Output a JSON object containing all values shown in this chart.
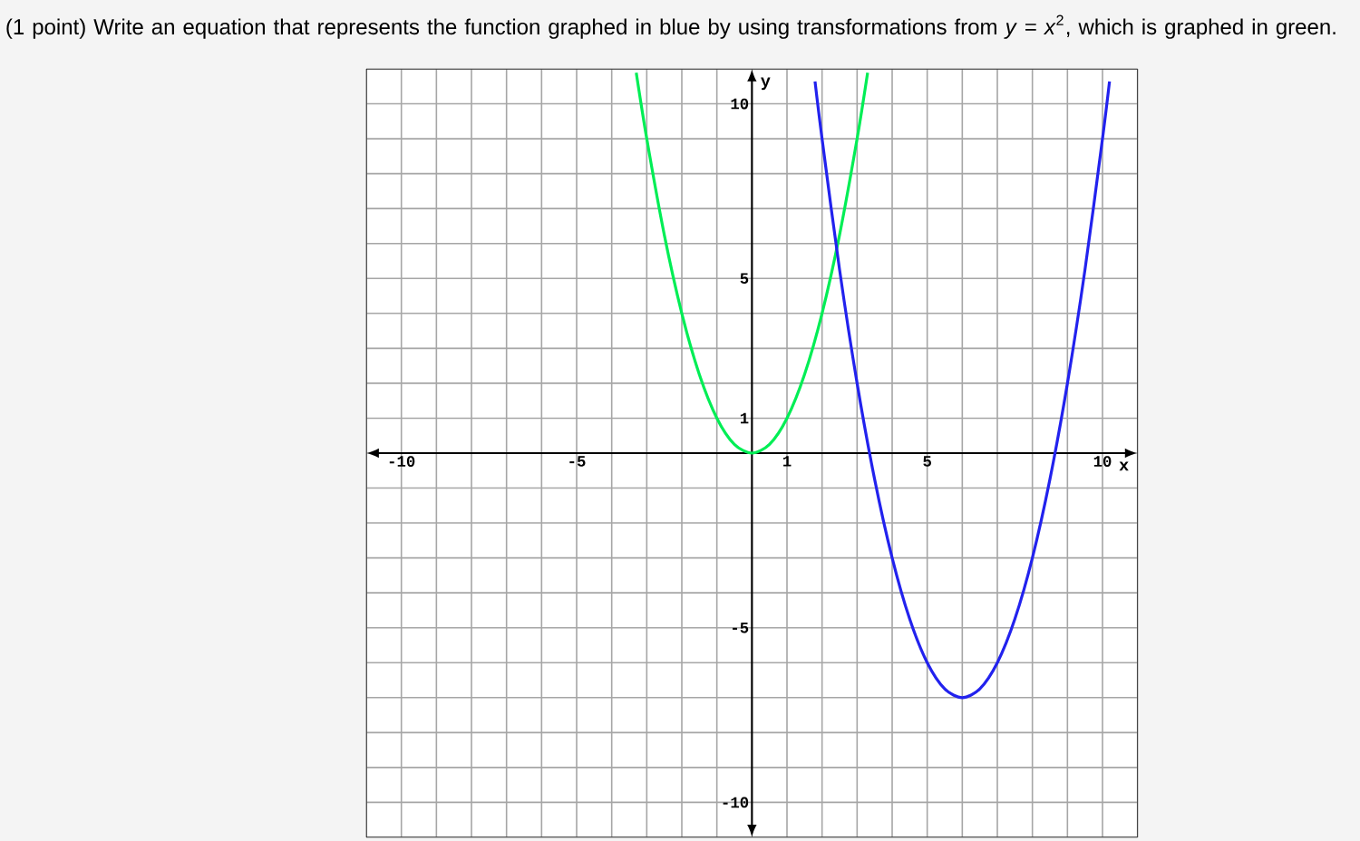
{
  "chart_data": {
    "type": "line",
    "title": "(1 point) Write an equation that represents the function graphed in blue by using transformations from *y* = *x*$^{2}$, which is graphed in green.",
    "xlabel": "x",
    "ylabel": "y",
    "xlim": [
      -11,
      11
    ],
    "ylim": [
      -11,
      11
    ],
    "xticks": [
      {
        "value": -11,
        "label": null
      },
      -10,
      {
        "value": -9,
        "label": null
      },
      {
        "value": -8,
        "label": null
      },
      {
        "value": -7,
        "label": null
      },
      {
        "value": -6,
        "label": null
      },
      -5,
      {
        "value": -4,
        "label": null
      },
      {
        "value": -3,
        "label": null
      },
      {
        "value": -2,
        "label": null
      },
      {
        "value": -1,
        "label": null
      },
      {
        "value": 0,
        "label": null
      },
      1,
      {
        "value": 2,
        "label": null
      },
      {
        "value": 3,
        "label": null
      },
      {
        "value": 4,
        "label": null
      },
      5,
      {
        "value": 6,
        "label": null
      },
      {
        "value": 7,
        "label": null
      },
      {
        "value": 8,
        "label": null
      },
      {
        "value": 9,
        "label": null
      },
      10,
      {
        "value": 11,
        "label": null
      }
    ],
    "yticks": [
      {
        "value": -11,
        "label": null
      },
      -10,
      {
        "value": -9,
        "label": null
      },
      {
        "value": -8,
        "label": null
      },
      {
        "value": -7,
        "label": null
      },
      {
        "value": -6,
        "label": null
      },
      -5,
      {
        "value": -4,
        "label": null
      },
      {
        "value": -3,
        "label": null
      },
      {
        "value": -2,
        "label": null
      },
      {
        "value": -1,
        "label": null
      },
      {
        "value": 0,
        "label": null
      },
      1,
      {
        "value": 2,
        "label": null
      },
      {
        "value": 3,
        "label": null
      },
      {
        "value": 4,
        "label": null
      },
      5,
      {
        "value": 6,
        "label": null
      },
      {
        "value": 7,
        "label": null
      },
      {
        "value": 8,
        "label": null
      },
      {
        "value": 9,
        "label": null
      },
      10,
      {
        "value": 11,
        "label": null
      }
    ],
    "grid": true,
    "marker": "none",
    "line_style": "solid",
    "series": [
      {
        "color": "#00ee55",
        "x": [
          -3.3,
          -3,
          -2.5,
          -2,
          -1.5,
          -1,
          -0.5,
          0,
          0.5,
          1,
          1.5,
          2,
          2.5,
          3,
          3.3
        ],
        "values": [
          10.89,
          9,
          6.25,
          4,
          2.25,
          1,
          0.25,
          0,
          0.25,
          1,
          2.25,
          4,
          6.25,
          9,
          10.89
        ]
      },
      {
        "color": "#2222ee",
        "x": [
          1.8,
          2,
          2.5,
          3,
          3.5,
          4,
          4.5,
          5,
          5.5,
          6,
          6.5,
          7,
          7.5,
          8,
          8.5,
          9,
          9.5,
          10,
          10.2
        ],
        "values": [
          10.64,
          9,
          5.25,
          2,
          -0.75,
          -3,
          -4.75,
          -6,
          -6.75,
          -7,
          -6.75,
          -6,
          -4.75,
          -3,
          -0.75,
          2,
          5.25,
          9,
          10.64
        ]
      }
    ]
  }
}
